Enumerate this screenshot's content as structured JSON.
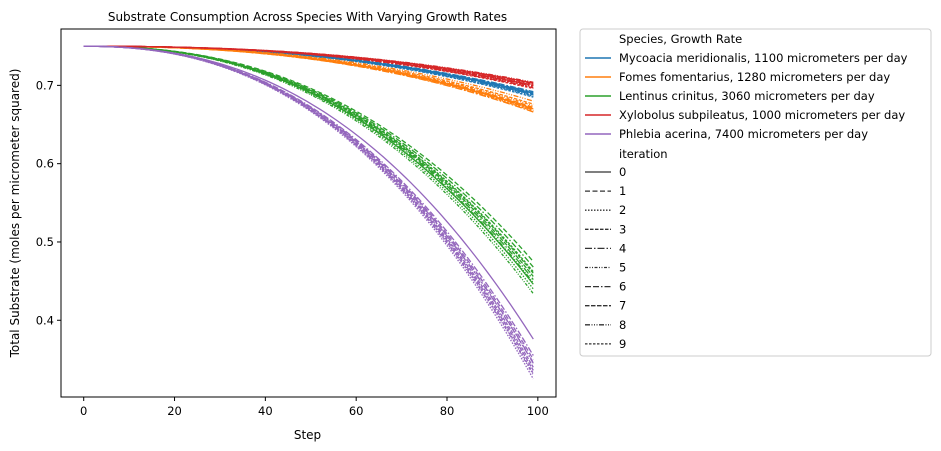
{
  "chart_data": {
    "type": "line",
    "title": "Substrate Consumption Across Species With Varying Growth Rates",
    "xlabel": "Step",
    "ylabel": "Total Substrate (moles per micrometer squared)",
    "xlim": [
      -5,
      104
    ],
    "ylim": [
      0.302,
      0.772
    ],
    "xticks": [
      0,
      20,
      40,
      60,
      80,
      100
    ],
    "yticks": [
      0.4,
      0.5,
      0.6,
      0.7
    ],
    "grid": false,
    "legend_placement": "outside-right",
    "legend": {
      "hue_title": "Species, Growth Rate",
      "style_title": "iteration",
      "styles": [
        "0",
        "1",
        "2",
        "3",
        "4",
        "5",
        "6",
        "7",
        "8",
        "9"
      ]
    },
    "start_value": 0.75,
    "end_step": 99,
    "series": [
      {
        "name": "Mycoacia meridionalis, 1100 micrometers per day",
        "color": "#1f77b4",
        "end_values": [
          0.69,
          0.688,
          0.686,
          0.691,
          0.689,
          0.687,
          0.692,
          0.688,
          0.69,
          0.685
        ]
      },
      {
        "name": "Fomes fomentarius, 1280 micrometers per day",
        "color": "#ff7f0e",
        "end_values": [
          0.67,
          0.672,
          0.668,
          0.676,
          0.666,
          0.674,
          0.669,
          0.671,
          0.68,
          0.667
        ]
      },
      {
        "name": "Lentinus crinitus, 3060 micrometers per day",
        "color": "#2ca02c",
        "end_values": [
          0.446,
          0.475,
          0.44,
          0.46,
          0.452,
          0.434,
          0.468,
          0.456,
          0.448,
          0.462
        ]
      },
      {
        "name": "Xylobolus subpileatus, 1000 micrometers per day",
        "color": "#d62728",
        "end_values": [
          0.703,
          0.7,
          0.698,
          0.702,
          0.699,
          0.701,
          0.697,
          0.7,
          0.704,
          0.696
        ]
      },
      {
        "name": "Phlebia acerina, 7400 micrometers per day",
        "color": "#9467bd",
        "end_values": [
          0.376,
          0.35,
          0.325,
          0.34,
          0.345,
          0.33,
          0.355,
          0.336,
          0.346,
          0.332
        ]
      }
    ]
  }
}
